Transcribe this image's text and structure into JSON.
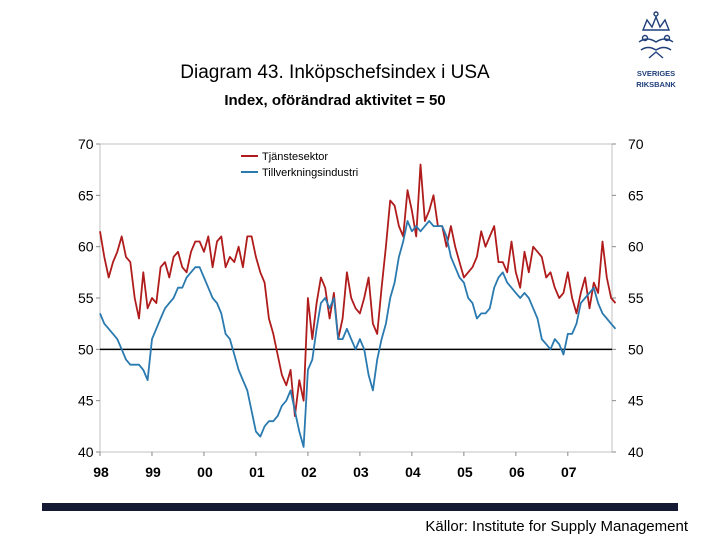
{
  "header": {
    "title": "Diagram 43. Inköpschefsindex i USA",
    "subtitle": "Index, oförändrad aktivitet = 50"
  },
  "logo": {
    "line1": "SVERIGES",
    "line2": "RIKSBANK",
    "icon": "crown-emblem-icon"
  },
  "footer": {
    "source": "Källor: Institute for Supply Management"
  },
  "colors": {
    "series1": "#b01c1c",
    "series2": "#2a7ab0",
    "reference_line": "#000000",
    "footer_bar": "#141a33",
    "logo": "#1f3f7a"
  },
  "chart_data": {
    "type": "line",
    "title": "Diagram 43. Inköpschefsindex i USA",
    "subtitle": "Index, oförändrad aktivitet = 50",
    "xlabel": "",
    "ylabel": "",
    "ylim": [
      40,
      70
    ],
    "yticks": [
      40,
      45,
      50,
      55,
      60,
      65,
      70
    ],
    "yticklabels": [
      "40",
      "45",
      "50",
      "55",
      "60",
      "65",
      "70"
    ],
    "xlim": [
      1998.0,
      2007.85
    ],
    "xticks": [
      1998,
      1999,
      2000,
      2001,
      2002,
      2003,
      2004,
      2005,
      2006,
      2007
    ],
    "xticklabels": [
      "98",
      "99",
      "00",
      "01",
      "02",
      "03",
      "04",
      "05",
      "06",
      "07"
    ],
    "reference_line": 50,
    "legend_position": "top-left",
    "series": [
      {
        "name": "Tjänstesektor",
        "color": "#b01c1c",
        "x_start": 1998.0,
        "step": 0.0833333,
        "values": [
          61.5,
          59.0,
          57.0,
          58.5,
          59.5,
          61.0,
          59.0,
          58.5,
          55.0,
          53.0,
          57.5,
          54.0,
          55.0,
          54.5,
          58.0,
          58.5,
          57.0,
          59.0,
          59.5,
          58.0,
          57.5,
          59.5,
          60.5,
          60.5,
          59.5,
          61.0,
          58.0,
          60.5,
          61.0,
          58.0,
          59.0,
          58.5,
          60.0,
          58.0,
          61.0,
          61.0,
          59.0,
          57.5,
          56.5,
          53.0,
          51.5,
          49.5,
          47.5,
          46.5,
          48.0,
          43.5,
          47.0,
          45.0,
          55.0,
          51.0,
          54.5,
          57.0,
          56.0,
          53.0,
          55.5,
          51.0,
          53.0,
          57.5,
          55.0,
          54.0,
          53.5,
          55.0,
          57.0,
          52.5,
          51.5,
          56.0,
          60.0,
          64.5,
          64.0,
          62.0,
          61.0,
          65.5,
          63.5,
          61.0,
          68.0,
          62.5,
          63.5,
          65.0,
          62.0,
          62.0,
          60.0,
          62.0,
          60.0,
          58.5,
          57.0,
          57.5,
          58.0,
          59.0,
          61.5,
          60.0,
          61.0,
          62.0,
          58.5,
          58.5,
          57.5,
          60.5,
          57.5,
          56.0,
          59.5,
          57.5,
          60.0,
          59.5,
          59.0,
          57.0,
          57.5,
          56.0,
          55.0,
          55.5,
          57.5,
          55.0,
          53.5,
          55.5,
          57.0,
          54.0,
          56.5,
          55.5,
          60.5,
          57.0,
          55.0,
          54.5
        ]
      },
      {
        "name": "Tillverkningsindustri",
        "color": "#2a7ab0",
        "x_start": 1998.0,
        "step": 0.0833333,
        "values": [
          53.5,
          52.5,
          52.0,
          51.5,
          51.0,
          50.0,
          49.0,
          48.5,
          48.5,
          48.5,
          48.0,
          47.0,
          51.0,
          52.0,
          53.0,
          54.0,
          54.5,
          55.0,
          56.0,
          56.0,
          57.0,
          57.5,
          58.0,
          58.0,
          57.0,
          56.0,
          55.0,
          54.5,
          53.5,
          51.5,
          51.0,
          49.5,
          48.0,
          47.0,
          46.0,
          44.0,
          42.0,
          41.5,
          42.5,
          43.0,
          43.0,
          43.5,
          44.5,
          45.0,
          46.0,
          44.0,
          42.0,
          40.5,
          48.0,
          49.0,
          52.0,
          54.5,
          55.0,
          54.0,
          55.0,
          51.0,
          51.0,
          52.0,
          51.0,
          50.0,
          51.0,
          50.0,
          47.5,
          46.0,
          49.0,
          51.0,
          52.5,
          55.0,
          56.5,
          59.0,
          60.5,
          62.5,
          61.5,
          62.0,
          61.5,
          62.0,
          62.5,
          62.0,
          62.0,
          62.0,
          61.0,
          59.0,
          58.0,
          57.0,
          56.5,
          55.0,
          54.5,
          53.0,
          53.5,
          53.5,
          54.0,
          56.0,
          57.0,
          57.5,
          56.5,
          56.0,
          55.5,
          55.0,
          55.5,
          55.0,
          54.0,
          53.0,
          51.0,
          50.5,
          50.0,
          51.0,
          50.5,
          49.5,
          51.5,
          51.5,
          52.5,
          54.5,
          55.0,
          55.5,
          56.0,
          54.5,
          53.5,
          53.0,
          52.5,
          52.0
        ]
      }
    ]
  }
}
